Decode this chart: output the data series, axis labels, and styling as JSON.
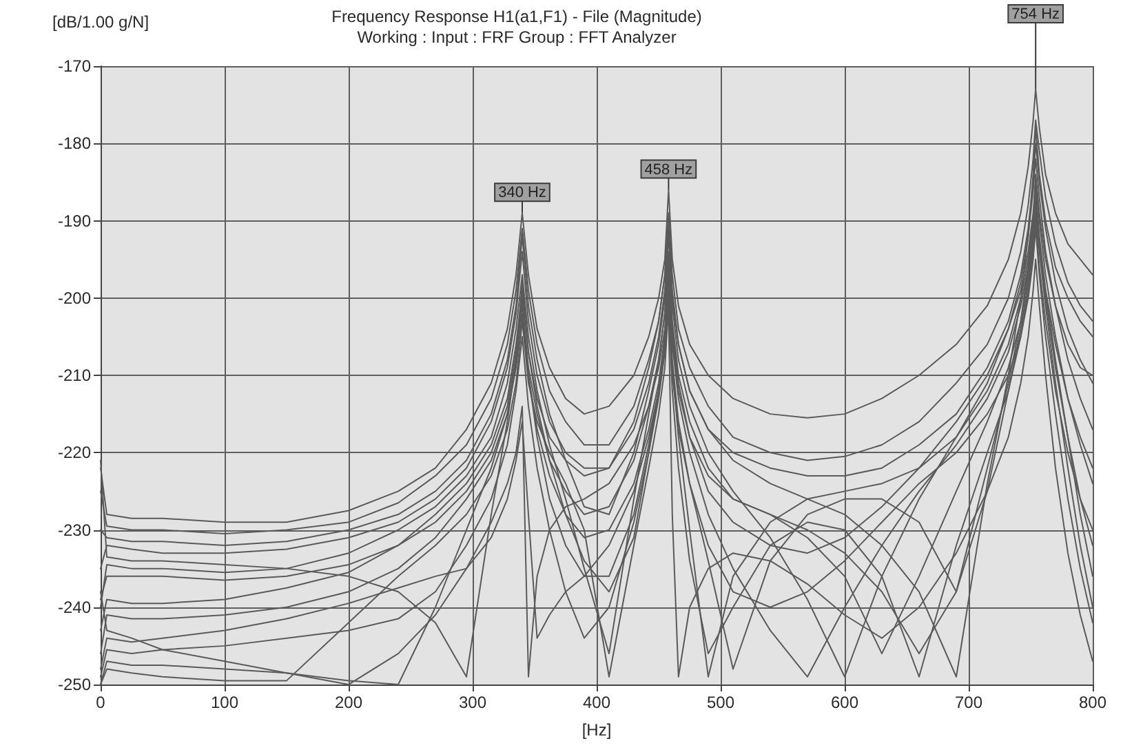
{
  "chart_data": {
    "type": "line",
    "title": "Frequency Response H1(a1,F1) - File (Magnitude)",
    "subtitle": "Working : Input : FRF Group : FFT Analyzer",
    "xlabel": "[Hz]",
    "ylabel": "[dB/1.00 g/N]",
    "x": [
      0,
      5,
      25,
      50,
      100,
      150,
      200,
      240,
      270,
      295,
      315,
      328,
      335,
      340,
      345,
      352,
      362,
      375,
      390,
      410,
      430,
      442,
      450,
      455,
      458,
      461,
      466,
      475,
      490,
      510,
      540,
      570,
      600,
      630,
      660,
      690,
      715,
      732,
      742,
      748,
      752,
      754,
      757,
      762,
      770,
      780,
      790,
      800
    ],
    "xlim": [
      0,
      800
    ],
    "xticks": [
      0,
      100,
      200,
      300,
      400,
      500,
      600,
      700,
      800
    ],
    "ylim": [
      -250,
      -170
    ],
    "yticks": [
      -250,
      -240,
      -230,
      -220,
      -210,
      -200,
      -190,
      -180,
      -170
    ],
    "grid": true,
    "annotations": [
      {
        "text": "340 Hz",
        "x": 340,
        "y": -189
      },
      {
        "text": "458 Hz",
        "x": 458,
        "y": -186
      },
      {
        "text": "754 Hz",
        "x": 754,
        "y": -173
      }
    ],
    "series": [
      {
        "color": "#5a5a5a",
        "values": [
          -222,
          -228,
          -228.5,
          -228.5,
          -229,
          -229,
          -227.5,
          -225,
          -222,
          -217,
          -211,
          -204,
          -197,
          -189,
          -197,
          -204,
          -209,
          -213,
          -215,
          -214,
          -210,
          -205,
          -200,
          -195,
          -186,
          -195,
          -201,
          -206,
          -210,
          -213,
          -215,
          -215.5,
          -215,
          -213,
          -210,
          -206,
          -201,
          -195,
          -189,
          -183,
          -177,
          -173,
          -178,
          -184,
          -189,
          -193,
          -195,
          -197
        ]
      },
      {
        "color": "#5a5a5a",
        "values": [
          -225,
          -229.5,
          -230,
          -230,
          -230.5,
          -230,
          -229,
          -226.5,
          -223,
          -219,
          -213,
          -206,
          -199,
          -191,
          -199,
          -206,
          -212,
          -216,
          -219,
          -219,
          -214,
          -208,
          -203,
          -197,
          -189,
          -197,
          -204,
          -209,
          -214,
          -218,
          -220,
          -221,
          -220.5,
          -219,
          -216,
          -211,
          -206,
          -200,
          -194,
          -188,
          -182,
          -177,
          -181,
          -187,
          -193,
          -198,
          -201,
          -203
        ]
      },
      {
        "color": "#5a5a5a",
        "values": [
          -230,
          -231,
          -231.5,
          -231.5,
          -232,
          -231.5,
          -230,
          -228,
          -225,
          -221,
          -215,
          -208,
          -201,
          -192,
          -201,
          -208,
          -215,
          -221,
          -227,
          -228,
          -220,
          -212,
          -206,
          -200,
          -191,
          -200,
          -206,
          -212,
          -217,
          -220,
          -222,
          -223,
          -223,
          -222,
          -219,
          -215,
          -209,
          -203,
          -197,
          -191,
          -185,
          -180,
          -185,
          -191,
          -198,
          -204,
          -208,
          -211
        ]
      },
      {
        "color": "#5a5a5a",
        "values": [
          -235,
          -232,
          -232.5,
          -233,
          -233,
          -232.5,
          -231,
          -229,
          -226,
          -222,
          -216,
          -209,
          -202,
          -194,
          -203,
          -210,
          -216,
          -220,
          -222,
          -222,
          -217,
          -211,
          -205,
          -199,
          -192,
          -201,
          -208,
          -214,
          -220,
          -225,
          -231,
          -239,
          -249,
          -236,
          -226,
          -218,
          -211,
          -204,
          -198,
          -192,
          -186,
          -182,
          -187,
          -194,
          -201,
          -208,
          -213,
          -217
        ]
      },
      {
        "color": "#5a5a5a",
        "values": [
          -240,
          -234.5,
          -235,
          -235,
          -235.5,
          -235,
          -233,
          -230,
          -227,
          -223,
          -218,
          -211,
          -204,
          -197,
          -205,
          -212,
          -219,
          -226,
          -235,
          -246,
          -226,
          -215,
          -208,
          -202,
          -195,
          -204,
          -211,
          -218,
          -225,
          -229,
          -232,
          -233,
          -231,
          -227,
          -222,
          -216,
          -210,
          -204,
          -199,
          -194,
          -189,
          -185,
          -190,
          -197,
          -205,
          -213,
          -219,
          -224
        ]
      },
      {
        "color": "#5a5a5a",
        "values": [
          -243,
          -239,
          -239.5,
          -239.5,
          -239,
          -237.5,
          -235.5,
          -232,
          -228,
          -224,
          -219,
          -213,
          -206,
          -199,
          -207,
          -214,
          -221,
          -228,
          -234,
          -238,
          -231,
          -220,
          -212,
          -205,
          -197,
          -206,
          -213,
          -220,
          -228,
          -235,
          -243,
          -249,
          -240,
          -232,
          -225,
          -219,
          -213,
          -207,
          -201,
          -196,
          -191,
          -187,
          -193,
          -200,
          -209,
          -218,
          -226,
          -232
        ]
      },
      {
        "color": "#5a5a5a",
        "values": [
          -246,
          -241,
          -241.5,
          -241.5,
          -241,
          -240,
          -238,
          -235,
          -231,
          -226,
          -221,
          -215,
          -209,
          -202,
          -210,
          -217,
          -223,
          -228,
          -231,
          -230,
          -224,
          -217,
          -211,
          -205,
          -199,
          -209,
          -218,
          -230,
          -249,
          -236,
          -229,
          -226,
          -225,
          -224,
          -222,
          -218,
          -212,
          -206,
          -200,
          -195,
          -190,
          -186,
          -192,
          -199,
          -208,
          -218,
          -228,
          -236
        ]
      },
      {
        "color": "#5a5a5a",
        "values": [
          -249,
          -245.5,
          -246,
          -245.5,
          -245,
          -244,
          -243,
          -241.5,
          -238,
          -232,
          -226,
          -219,
          -212,
          -205,
          -214,
          -222,
          -230,
          -238,
          -244,
          -240,
          -229,
          -220,
          -213,
          -207,
          -200,
          -210,
          -217,
          -224,
          -232,
          -238,
          -240,
          -238,
          -234,
          -229,
          -224,
          -220,
          -215,
          -210,
          -205,
          -200,
          -195,
          -191,
          -197,
          -205,
          -215,
          -226,
          -235,
          -242
        ]
      },
      {
        "color": "#5a5a5a",
        "values": [
          -250,
          -247,
          -247.5,
          -247.5,
          -248,
          -248.5,
          -249.5,
          -250,
          -240,
          -230,
          -222,
          -215,
          -208,
          -200,
          -210,
          -218,
          -226,
          -232,
          -236,
          -236,
          -228,
          -219,
          -212,
          -206,
          -198,
          -208,
          -216,
          -224,
          -234,
          -248,
          -234,
          -228,
          -226,
          -226,
          -229,
          -238,
          -225,
          -212,
          -204,
          -198,
          -193,
          -189,
          -194,
          -201,
          -211,
          -222,
          -232,
          -240
        ]
      },
      {
        "color": "#5a5a5a",
        "values": [
          -238,
          -243,
          -244,
          -245.5,
          -247,
          -248.5,
          -250,
          -246,
          -241,
          -235,
          -229,
          -224,
          -220,
          -214,
          -249,
          -236,
          -230,
          -227,
          -226,
          -224,
          -219,
          -214,
          -209,
          -204,
          -196,
          -205,
          -212,
          -218,
          -223,
          -226,
          -228,
          -231,
          -236,
          -246,
          -236,
          -225,
          -216,
          -209,
          -203,
          -197,
          -192,
          -188,
          -193,
          -199,
          -206,
          -213,
          -218,
          -222
        ]
      },
      {
        "color": "#5a5a5a",
        "values": [
          -250,
          -248,
          -248.5,
          -249,
          -249.5,
          -249.5,
          -242,
          -236,
          -232,
          -228,
          -223,
          -217,
          -211,
          -203,
          -211,
          -216,
          -220,
          -224,
          -230,
          -249,
          -232,
          -222,
          -215,
          -209,
          -201,
          -212,
          -222,
          -234,
          -246,
          -240,
          -232,
          -229,
          -230,
          -236,
          -249,
          -232,
          -220,
          -212,
          -205,
          -199,
          -194,
          -190,
          -196,
          -203,
          -212,
          -220,
          -226,
          -230
        ]
      },
      {
        "color": "#5a5a5a",
        "values": [
          -221,
          -233.5,
          -234,
          -234,
          -234.5,
          -235,
          -236,
          -238,
          -242,
          -249,
          -228,
          -216,
          -208,
          -198,
          -207,
          -213,
          -218,
          -221,
          -223,
          -222,
          -216,
          -209,
          -203,
          -197,
          -190,
          -199,
          -206,
          -212,
          -217,
          -221,
          -224,
          -226,
          -228,
          -232,
          -238,
          -249,
          -224,
          -210,
          -200,
          -192,
          -184,
          -178,
          -184,
          -190,
          -196,
          -200,
          -203,
          -205
        ]
      },
      {
        "color": "#5a5a5a",
        "values": [
          -248,
          -244,
          -244.5,
          -244,
          -243,
          -241.5,
          -239.5,
          -237.5,
          -236,
          -235,
          -231,
          -226,
          -221,
          -216,
          -228,
          -244,
          -241,
          -238,
          -236,
          -232,
          -225,
          -218,
          -212,
          -206,
          -202,
          -228,
          -249,
          -240,
          -235,
          -233,
          -234,
          -237,
          -241,
          -244,
          -240,
          -233,
          -225,
          -218,
          -211,
          -205,
          -199,
          -195,
          -201,
          -210,
          -222,
          -233,
          -241,
          -247
        ]
      },
      {
        "color": "#5a5a5a",
        "values": [
          -239,
          -236,
          -236,
          -236,
          -236.5,
          -236,
          -234.5,
          -232,
          -229,
          -225,
          -220,
          -214,
          -207,
          -201,
          -209,
          -215,
          -221,
          -225,
          -228,
          -227,
          -221,
          -214,
          -208,
          -202,
          -194,
          -203,
          -210,
          -216,
          -222,
          -226,
          -228,
          -230,
          -233,
          -238,
          -246,
          -238,
          -222,
          -211,
          -203,
          -196,
          -190,
          -184,
          -189,
          -195,
          -201,
          -206,
          -209,
          -210
        ]
      }
    ]
  }
}
